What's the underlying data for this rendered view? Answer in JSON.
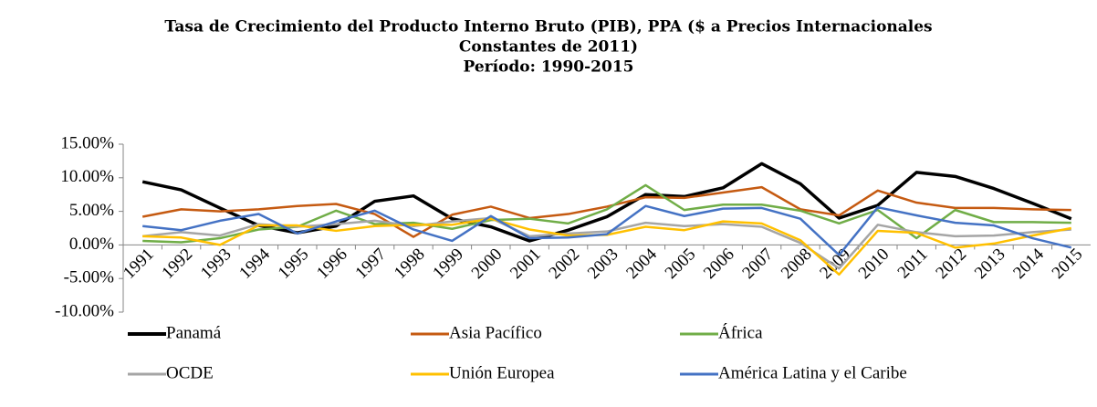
{
  "chart_data": {
    "type": "line",
    "title": [
      "Tasa de Crecimiento del Producto Interno Bruto (PIB), PPA ($ a Precios Internacionales",
      "Constantes de 2011)"
    ],
    "subtitle": "Período: 1990-2015",
    "categories": [
      "1991",
      "1992",
      "1993",
      "1994",
      "1995",
      "1996",
      "1997",
      "1998",
      "1999",
      "2000",
      "2001",
      "2002",
      "2003",
      "2004",
      "2005",
      "2006",
      "2007",
      "2008",
      "2009",
      "2010",
      "2011",
      "2012",
      "2013",
      "2014",
      "2015"
    ],
    "series": [
      {
        "name": "Panamá",
        "color": "#000000",
        "values": [
          9.4,
          8.2,
          5.5,
          2.9,
          1.8,
          2.8,
          6.5,
          7.3,
          3.9,
          2.7,
          0.6,
          2.2,
          4.2,
          7.5,
          7.2,
          8.5,
          12.1,
          9.1,
          4.0,
          5.9,
          10.8,
          10.2,
          8.4,
          6.2,
          3.9
        ]
      },
      {
        "name": "Asia Pacífico",
        "color": "#c55a11",
        "values": [
          4.2,
          5.3,
          5.0,
          5.3,
          5.8,
          6.1,
          4.6,
          1.2,
          4.5,
          5.7,
          4.0,
          4.6,
          5.7,
          7.1,
          7.0,
          7.8,
          8.6,
          5.3,
          4.4,
          8.1,
          6.3,
          5.5,
          5.5,
          5.3,
          5.2
        ]
      },
      {
        "name": "África",
        "color": "#70ad47",
        "values": [
          0.6,
          0.4,
          1.0,
          2.3,
          2.7,
          5.1,
          3.1,
          3.3,
          2.4,
          3.7,
          3.9,
          3.2,
          5.3,
          8.9,
          5.2,
          6.0,
          6.0,
          5.1,
          3.2,
          5.2,
          1.0,
          5.2,
          3.4,
          3.4,
          3.3
        ]
      },
      {
        "name": "OCDE",
        "color": "#a5a5a5",
        "values": [
          1.3,
          1.9,
          1.4,
          3.1,
          2.7,
          3.1,
          3.6,
          2.8,
          3.5,
          4.0,
          1.3,
          1.7,
          2.0,
          3.3,
          2.8,
          3.1,
          2.7,
          0.3,
          -3.5,
          3.0,
          1.9,
          1.3,
          1.4,
          1.9,
          2.3
        ]
      },
      {
        "name": "Unión Europea",
        "color": "#ffc000",
        "values": [
          1.3,
          1.1,
          0.0,
          2.9,
          2.9,
          2.1,
          2.8,
          3.0,
          3.0,
          3.9,
          2.3,
          1.4,
          1.5,
          2.7,
          2.2,
          3.5,
          3.2,
          0.7,
          -4.4,
          2.1,
          1.8,
          -0.4,
          0.2,
          1.4,
          2.5
        ]
      },
      {
        "name": "América Latina y el Caribe",
        "color": "#4472c4",
        "values": [
          2.8,
          2.2,
          3.6,
          4.6,
          1.7,
          3.5,
          5.1,
          2.3,
          0.6,
          4.3,
          1.0,
          1.1,
          1.6,
          5.8,
          4.3,
          5.4,
          5.5,
          3.9,
          -1.5,
          5.6,
          4.4,
          3.3,
          2.9,
          1.0,
          -0.4
        ]
      }
    ],
    "ylim": [
      -10,
      15
    ],
    "yticks": [
      {
        "value": -10,
        "label": "-10.00%"
      },
      {
        "value": -5,
        "label": "-5.00%"
      },
      {
        "value": 0,
        "label": "0.00%"
      },
      {
        "value": 5,
        "label": "5.00%"
      },
      {
        "value": 10,
        "label": "10.00%"
      },
      {
        "value": 15,
        "label": "15.00%"
      }
    ],
    "legend": "bottom"
  }
}
